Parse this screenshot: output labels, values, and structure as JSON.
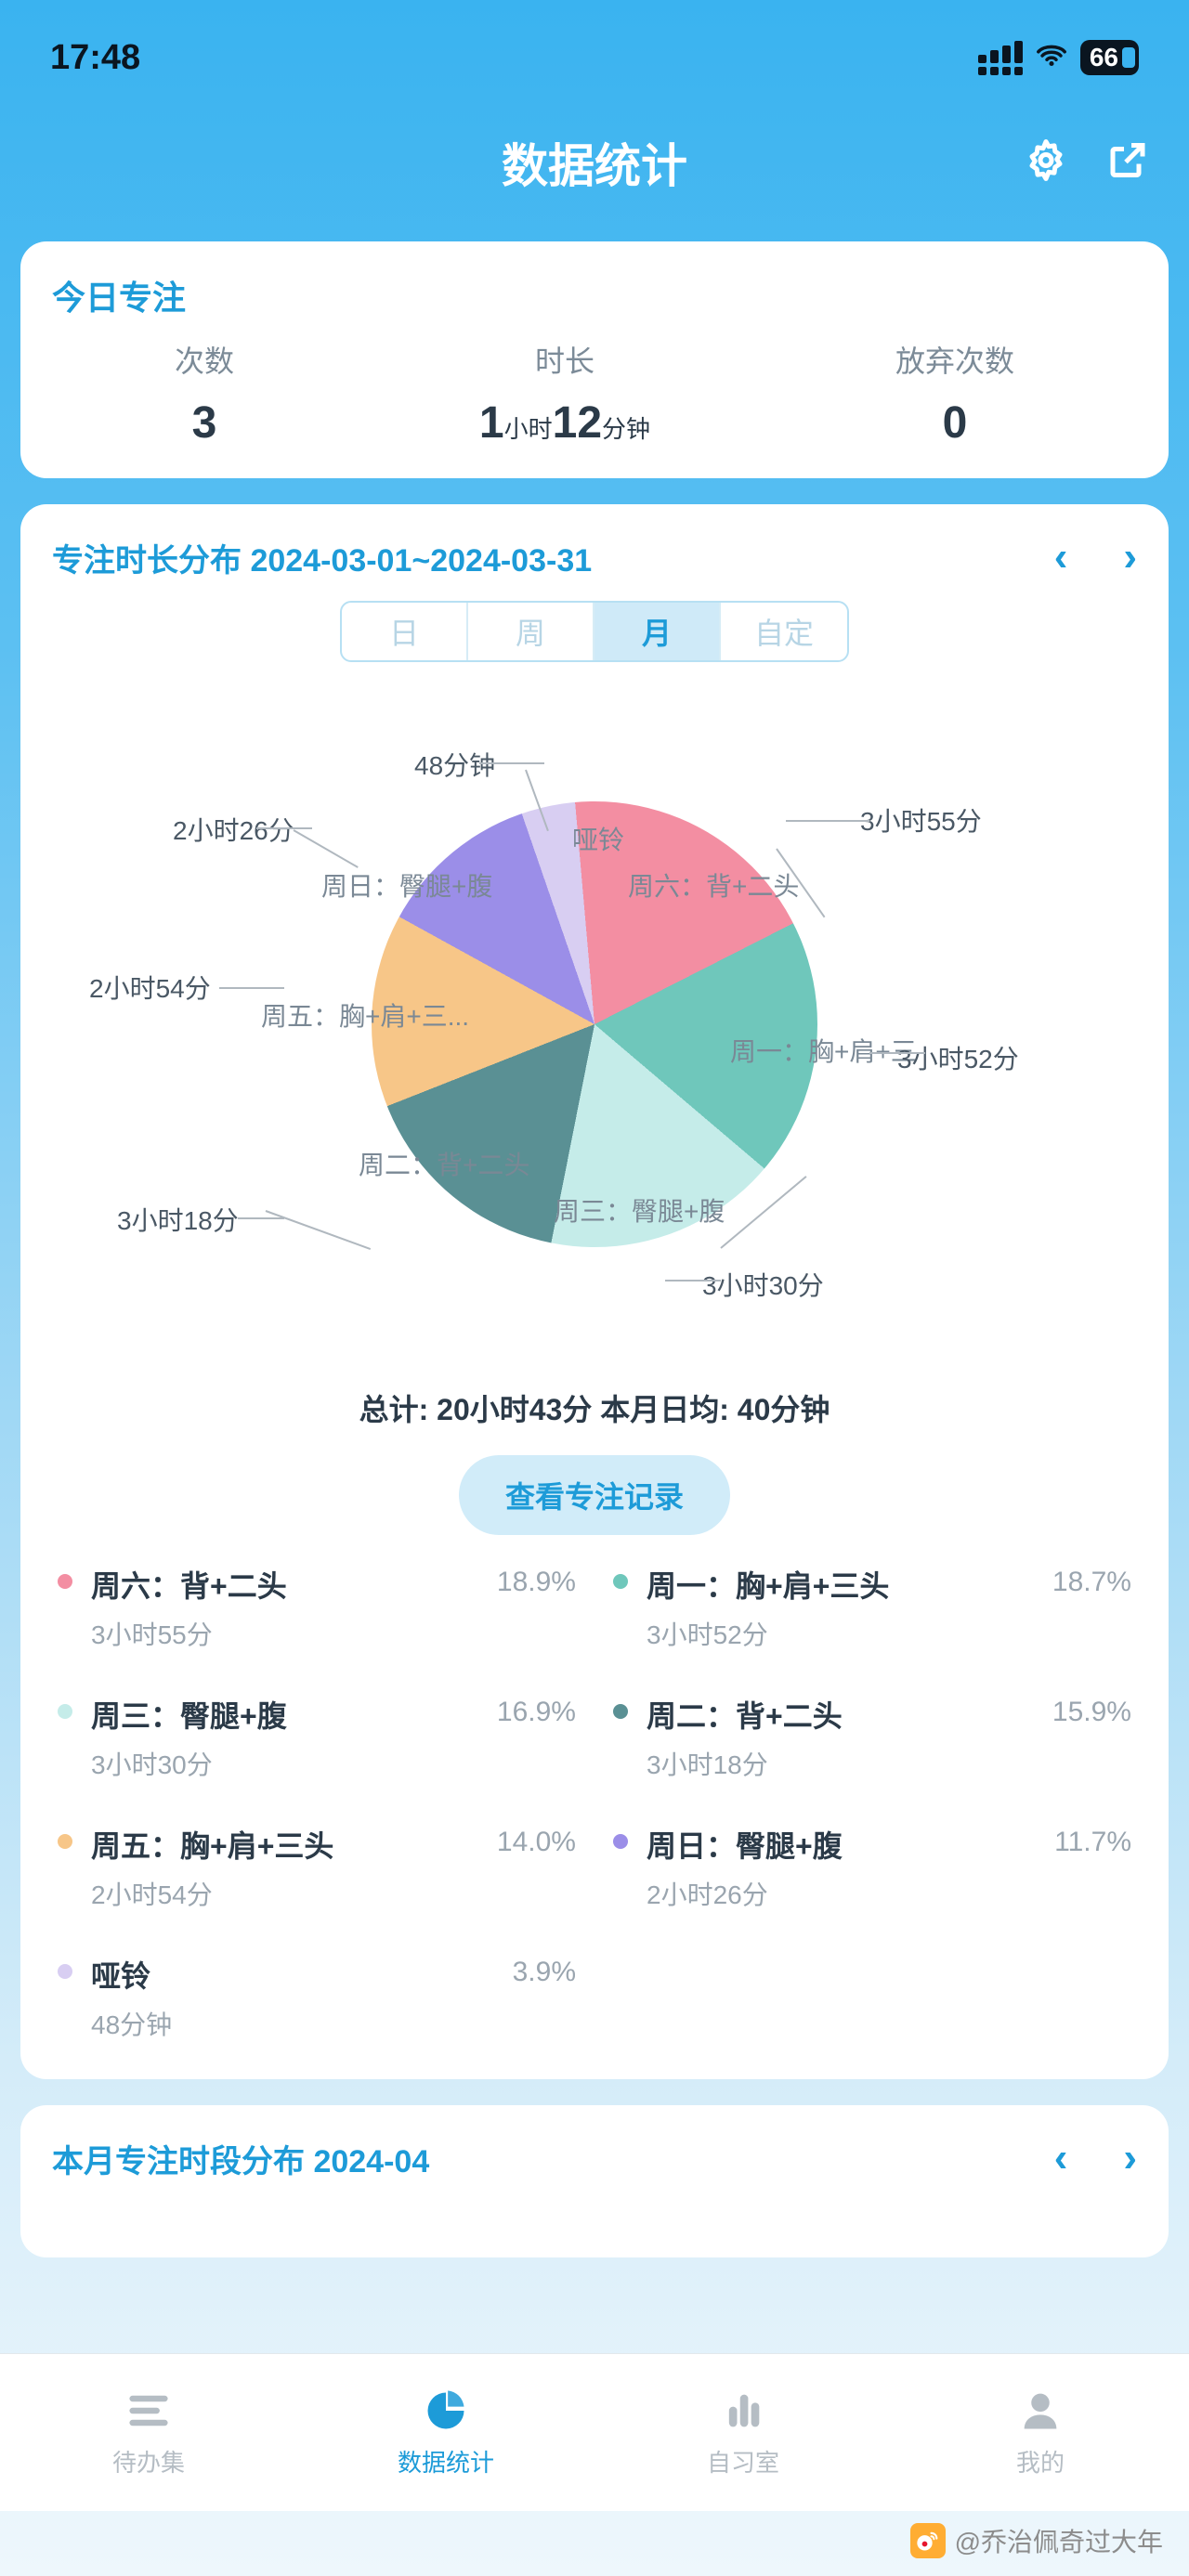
{
  "status": {
    "time": "17:48",
    "battery_pct": "66"
  },
  "header": {
    "title": "数据统计"
  },
  "today": {
    "title": "今日专注",
    "count_label": "次数",
    "count_value": "3",
    "duration_label": "时长",
    "duration_hours": "1",
    "duration_hours_unit": "小时",
    "duration_mins": "12",
    "duration_mins_unit": "分钟",
    "abandon_label": "放弃次数",
    "abandon_value": "0"
  },
  "dist": {
    "title": "专注时长分布 2024-03-01~2024-03-31",
    "tabs": {
      "day": "日",
      "week": "周",
      "month": "月",
      "custom": "自定"
    },
    "summary": "总计: 20小时43分  本月日均: 40分钟",
    "view_records": "查看专注记录",
    "chart": {
      "type": "pie",
      "background_color": "#ffffff",
      "label_fontsize": 28,
      "label_color": "#5a6b78",
      "leader_color": "#b0b8bf",
      "slices": [
        {
          "name": "周六：背+二头",
          "duration": "3小时55分",
          "percent": 18.9,
          "color": "#f38ea2"
        },
        {
          "name": "周一：胸+肩+三",
          "duration": "3小时52分",
          "percent": 18.7,
          "color": "#6fc7bb"
        },
        {
          "name": "周三：臀腿+腹",
          "duration": "3小时30分",
          "percent": 16.9,
          "color": "#c5ece9"
        },
        {
          "name": "周二：背+二头",
          "duration": "3小时18分",
          "percent": 15.9,
          "color": "#5a9094"
        },
        {
          "name": "周五：胸+肩+三...",
          "duration": "2小时54分",
          "percent": 14.0,
          "color": "#f7c688"
        },
        {
          "name": "周日：臀腿+腹",
          "duration": "2小时26分",
          "percent": 11.7,
          "color": "#9b8ee8"
        },
        {
          "name": "哑铃",
          "duration": "48分钟",
          "percent": 3.9,
          "color": "#d8cef2"
        }
      ]
    },
    "legend": [
      {
        "name": "周六：背+二头",
        "duration": "3小时55分",
        "percent_text": "18.9%",
        "color": "#f38ea2"
      },
      {
        "name": "周一：胸+肩+三头",
        "duration": "3小时52分",
        "percent_text": "18.7%",
        "color": "#6fc7bb"
      },
      {
        "name": "周三：臀腿+腹",
        "duration": "3小时30分",
        "percent_text": "16.9%",
        "color": "#c5ece9"
      },
      {
        "name": "周二：背+二头",
        "duration": "3小时18分",
        "percent_text": "15.9%",
        "color": "#5a9094"
      },
      {
        "name": "周五：胸+肩+三头",
        "duration": "2小时54分",
        "percent_text": "14.0%",
        "color": "#f7c688"
      },
      {
        "name": "周日：臀腿+腹",
        "duration": "2小时26分",
        "percent_text": "11.7%",
        "color": "#9b8ee8"
      },
      {
        "name": "哑铃",
        "duration": "48分钟",
        "percent_text": "3.9%",
        "color": "#d8cef2"
      }
    ]
  },
  "month_card": {
    "title": "本月专注时段分布  2024-04"
  },
  "tabbar": {
    "todo": "待办集",
    "stats": "数据统计",
    "study": "自习室",
    "me": "我的"
  },
  "watermark": {
    "text": "@乔治佩奇过大年"
  }
}
